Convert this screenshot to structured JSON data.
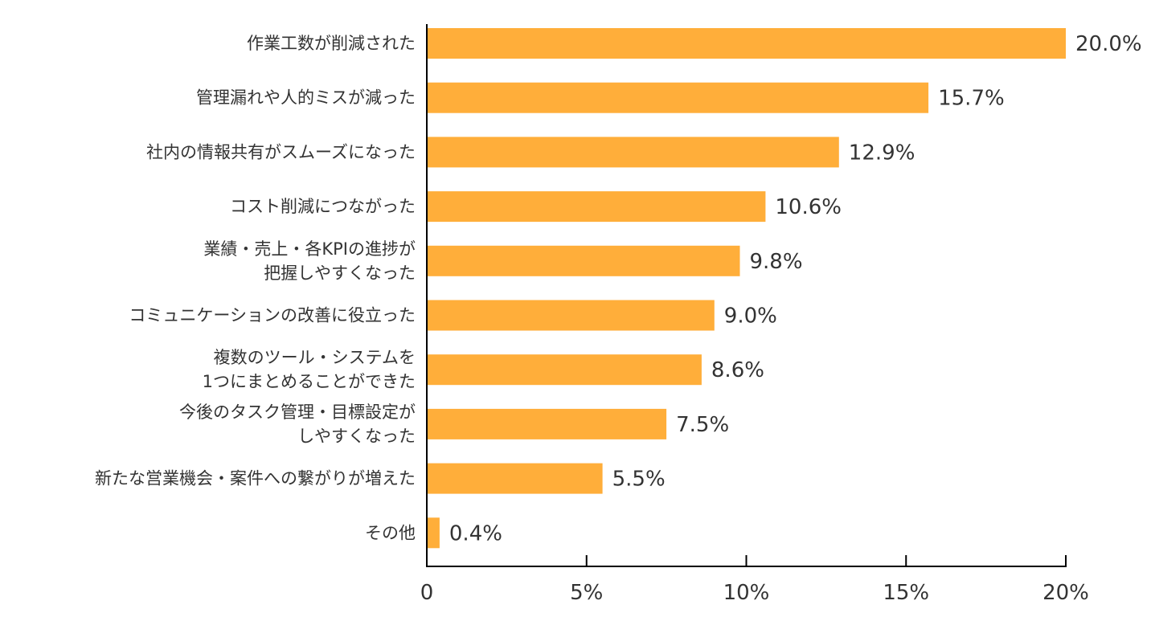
{
  "chart_data": {
    "type": "bar",
    "orientation": "horizontal",
    "categories": [
      [
        "作業工数が削減された"
      ],
      [
        "管理漏れや人的ミスが減った"
      ],
      [
        "社内の情報共有がスムーズになった"
      ],
      [
        "コスト削減につながった"
      ],
      [
        "業績・売上・各KPIの進捗が",
        "把握しやすくなった"
      ],
      [
        "コミュニケーションの改善に役立った"
      ],
      [
        "複数のツール・システムを",
        "1つにまとめることができた"
      ],
      [
        "今後のタスク管理・目標設定が",
        "しやすくなった"
      ],
      [
        "新たな営業機会・案件への繋がりが増えた"
      ],
      [
        "その他"
      ]
    ],
    "values": [
      20.0,
      15.7,
      12.9,
      10.6,
      9.8,
      9.0,
      8.6,
      7.5,
      5.5,
      0.4
    ],
    "value_labels": [
      "20.0%",
      "15.7%",
      "12.9%",
      "10.6%",
      "9.8%",
      "9.0%",
      "8.6%",
      "7.5%",
      "5.5%",
      "0.4%"
    ],
    "xlim": [
      0,
      20
    ],
    "x_ticks": [
      0,
      5,
      10,
      15,
      20
    ],
    "x_tick_labels": [
      "0",
      "5%",
      "10%",
      "15%",
      "20%"
    ],
    "bar_color": "#FFAE3A",
    "title": "",
    "xlabel": "",
    "ylabel": ""
  }
}
